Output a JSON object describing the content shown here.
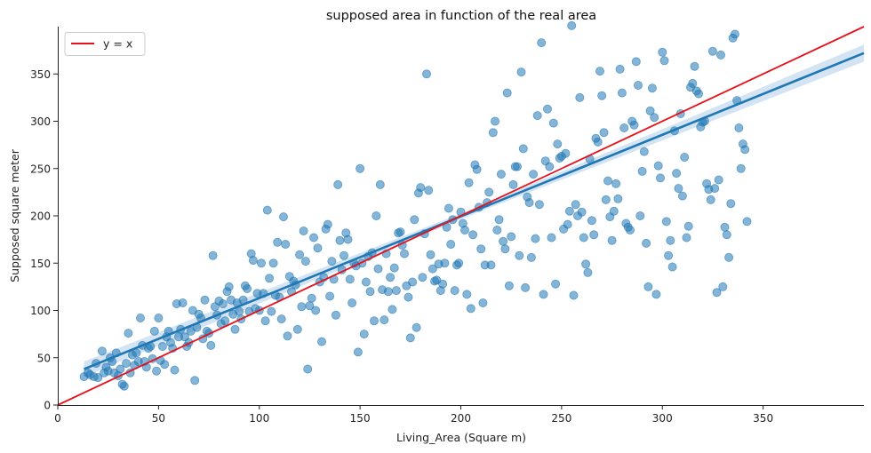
{
  "chart_data": {
    "type": "scatter",
    "title": "supposed area in function of the real area",
    "xlabel": "Living_Area (Square m)",
    "ylabel": "Supposed square meter",
    "xlim": [
      0,
      400
    ],
    "ylim": [
      0,
      400
    ],
    "xticks": [
      0,
      50,
      100,
      150,
      200,
      250,
      300,
      350
    ],
    "yticks": [
      0,
      50,
      100,
      150,
      200,
      250,
      300,
      350
    ],
    "grid": false,
    "legend": {
      "position": "top-left",
      "entries": [
        {
          "label": "y = x",
          "color": "#e8101a"
        }
      ]
    },
    "colors": {
      "points": "#1f77b4",
      "regression": "#1f77b4",
      "identity": "#e8101a",
      "band": "#c6dbef"
    },
    "series": [
      {
        "type": "scatter",
        "points": [
          [
            13,
            30
          ],
          [
            15,
            34
          ],
          [
            16,
            32
          ],
          [
            18,
            30
          ],
          [
            19,
            44
          ],
          [
            20,
            29
          ],
          [
            22,
            57
          ],
          [
            23,
            34
          ],
          [
            24,
            40
          ],
          [
            25,
            36
          ],
          [
            26,
            50
          ],
          [
            27,
            46
          ],
          [
            28,
            34
          ],
          [
            29,
            55
          ],
          [
            30,
            31
          ],
          [
            31,
            38
          ],
          [
            32,
            22
          ],
          [
            33,
            20
          ],
          [
            34,
            44
          ],
          [
            35,
            76
          ],
          [
            36,
            34
          ],
          [
            37,
            53
          ],
          [
            38,
            42
          ],
          [
            39,
            55
          ],
          [
            40,
            46
          ],
          [
            41,
            92
          ],
          [
            42,
            63
          ],
          [
            43,
            46
          ],
          [
            44,
            40
          ],
          [
            45,
            60
          ],
          [
            46,
            62
          ],
          [
            47,
            49
          ],
          [
            48,
            78
          ],
          [
            49,
            36
          ],
          [
            50,
            92
          ],
          [
            51,
            47
          ],
          [
            52,
            62
          ],
          [
            53,
            43
          ],
          [
            54,
            72
          ],
          [
            55,
            78
          ],
          [
            56,
            66
          ],
          [
            57,
            60
          ],
          [
            58,
            37
          ],
          [
            59,
            107
          ],
          [
            60,
            72
          ],
          [
            61,
            80
          ],
          [
            62,
            108
          ],
          [
            63,
            72
          ],
          [
            64,
            62
          ],
          [
            65,
            66
          ],
          [
            66,
            78
          ],
          [
            67,
            100
          ],
          [
            68,
            26
          ],
          [
            69,
            82
          ],
          [
            70,
            96
          ],
          [
            71,
            92
          ],
          [
            72,
            70
          ],
          [
            73,
            111
          ],
          [
            74,
            78
          ],
          [
            75,
            76
          ],
          [
            76,
            63
          ],
          [
            77,
            158
          ],
          [
            78,
            104
          ],
          [
            79,
            95
          ],
          [
            80,
            110
          ],
          [
            81,
            86
          ],
          [
            82,
            107
          ],
          [
            83,
            89
          ],
          [
            84,
            120
          ],
          [
            85,
            125
          ],
          [
            86,
            111
          ],
          [
            87,
            96
          ],
          [
            88,
            80
          ],
          [
            89,
            108
          ],
          [
            90,
            99
          ],
          [
            91,
            91
          ],
          [
            92,
            111
          ],
          [
            93,
            126
          ],
          [
            94,
            123
          ],
          [
            95,
            99
          ],
          [
            96,
            160
          ],
          [
            97,
            153
          ],
          [
            98,
            102
          ],
          [
            99,
            118
          ],
          [
            100,
            100
          ],
          [
            101,
            150
          ],
          [
            102,
            118
          ],
          [
            103,
            89
          ],
          [
            104,
            206
          ],
          [
            105,
            134
          ],
          [
            106,
            99
          ],
          [
            107,
            150
          ],
          [
            108,
            116
          ],
          [
            109,
            172
          ],
          [
            110,
            114
          ],
          [
            111,
            91
          ],
          [
            112,
            199
          ],
          [
            113,
            170
          ],
          [
            114,
            73
          ],
          [
            115,
            136
          ],
          [
            116,
            120
          ],
          [
            117,
            131
          ],
          [
            118,
            127
          ],
          [
            119,
            80
          ],
          [
            120,
            159
          ],
          [
            121,
            104
          ],
          [
            122,
            184
          ],
          [
            123,
            152
          ],
          [
            124,
            38
          ],
          [
            125,
            105
          ],
          [
            126,
            113
          ],
          [
            127,
            177
          ],
          [
            128,
            100
          ],
          [
            129,
            166
          ],
          [
            130,
            130
          ],
          [
            131,
            67
          ],
          [
            132,
            135
          ],
          [
            133,
            186
          ],
          [
            134,
            191
          ],
          [
            135,
            115
          ],
          [
            136,
            152
          ],
          [
            137,
            133
          ],
          [
            138,
            95
          ],
          [
            139,
            233
          ],
          [
            140,
            174
          ],
          [
            141,
            143
          ],
          [
            142,
            158
          ],
          [
            143,
            182
          ],
          [
            144,
            175
          ],
          [
            145,
            133
          ],
          [
            146,
            108
          ],
          [
            147,
            150
          ],
          [
            148,
            147
          ],
          [
            149,
            56
          ],
          [
            150,
            250
          ],
          [
            151,
            150
          ],
          [
            152,
            75
          ],
          [
            153,
            130
          ],
          [
            154,
            157
          ],
          [
            155,
            120
          ],
          [
            156,
            161
          ],
          [
            157,
            89
          ],
          [
            158,
            200
          ],
          [
            159,
            144
          ],
          [
            160,
            233
          ],
          [
            161,
            122
          ],
          [
            162,
            90
          ],
          [
            163,
            160
          ],
          [
            164,
            120
          ],
          [
            165,
            135
          ],
          [
            166,
            101
          ],
          [
            167,
            145
          ],
          [
            168,
            121
          ],
          [
            169,
            182
          ],
          [
            170,
            183
          ],
          [
            171,
            169
          ],
          [
            172,
            160
          ],
          [
            173,
            126
          ],
          [
            174,
            114
          ],
          [
            175,
            71
          ],
          [
            176,
            130
          ],
          [
            177,
            196
          ],
          [
            178,
            82
          ],
          [
            179,
            224
          ],
          [
            180,
            230
          ],
          [
            181,
            135
          ],
          [
            182,
            181
          ],
          [
            183,
            350
          ],
          [
            184,
            227
          ],
          [
            185,
            159
          ],
          [
            186,
            144
          ],
          [
            187,
            131
          ],
          [
            188,
            132
          ],
          [
            189,
            149
          ],
          [
            190,
            121
          ],
          [
            191,
            128
          ],
          [
            192,
            150
          ],
          [
            193,
            188
          ],
          [
            194,
            208
          ],
          [
            195,
            170
          ],
          [
            196,
            196
          ],
          [
            197,
            121
          ],
          [
            198,
            148
          ],
          [
            199,
            150
          ],
          [
            200,
            204
          ],
          [
            201,
            192
          ],
          [
            202,
            185
          ],
          [
            203,
            117
          ],
          [
            204,
            235
          ],
          [
            205,
            102
          ],
          [
            206,
            180
          ],
          [
            207,
            254
          ],
          [
            208,
            249
          ],
          [
            209,
            209
          ],
          [
            210,
            165
          ],
          [
            211,
            108
          ],
          [
            212,
            148
          ],
          [
            213,
            214
          ],
          [
            214,
            225
          ],
          [
            215,
            148
          ],
          [
            216,
            288
          ],
          [
            217,
            300
          ],
          [
            218,
            185
          ],
          [
            219,
            196
          ],
          [
            220,
            244
          ],
          [
            221,
            173
          ],
          [
            222,
            165
          ],
          [
            223,
            330
          ],
          [
            224,
            126
          ],
          [
            225,
            178
          ],
          [
            226,
            233
          ],
          [
            227,
            252
          ],
          [
            228,
            252
          ],
          [
            229,
            158
          ],
          [
            230,
            352
          ],
          [
            231,
            271
          ],
          [
            232,
            124
          ],
          [
            233,
            220
          ],
          [
            234,
            214
          ],
          [
            235,
            156
          ],
          [
            236,
            244
          ],
          [
            237,
            176
          ],
          [
            238,
            306
          ],
          [
            239,
            212
          ],
          [
            240,
            383
          ],
          [
            241,
            117
          ],
          [
            242,
            258
          ],
          [
            243,
            313
          ],
          [
            244,
            252
          ],
          [
            245,
            177
          ],
          [
            246,
            298
          ],
          [
            247,
            128
          ],
          [
            248,
            276
          ],
          [
            249,
            261
          ],
          [
            250,
            263
          ],
          [
            251,
            186
          ],
          [
            252,
            266
          ],
          [
            253,
            191
          ],
          [
            254,
            205
          ],
          [
            255,
            401
          ],
          [
            256,
            116
          ],
          [
            257,
            212
          ],
          [
            258,
            200
          ],
          [
            259,
            325
          ],
          [
            260,
            204
          ],
          [
            261,
            177
          ],
          [
            262,
            149
          ],
          [
            263,
            140
          ],
          [
            264,
            260
          ],
          [
            265,
            195
          ],
          [
            266,
            180
          ],
          [
            267,
            282
          ],
          [
            268,
            278
          ],
          [
            269,
            353
          ],
          [
            270,
            327
          ],
          [
            271,
            288
          ],
          [
            272,
            217
          ],
          [
            273,
            237
          ],
          [
            274,
            199
          ],
          [
            275,
            174
          ],
          [
            276,
            205
          ],
          [
            277,
            234
          ],
          [
            278,
            218
          ],
          [
            279,
            355
          ],
          [
            280,
            330
          ],
          [
            281,
            293
          ],
          [
            282,
            192
          ],
          [
            283,
            188
          ],
          [
            284,
            185
          ],
          [
            285,
            300
          ],
          [
            286,
            296
          ],
          [
            287,
            363
          ],
          [
            288,
            338
          ],
          [
            289,
            200
          ],
          [
            290,
            247
          ],
          [
            291,
            268
          ],
          [
            292,
            171
          ],
          [
            293,
            125
          ],
          [
            294,
            311
          ],
          [
            295,
            335
          ],
          [
            296,
            304
          ],
          [
            297,
            117
          ],
          [
            298,
            253
          ],
          [
            299,
            240
          ],
          [
            300,
            373
          ],
          [
            301,
            364
          ],
          [
            302,
            194
          ],
          [
            303,
            158
          ],
          [
            304,
            174
          ],
          [
            305,
            146
          ],
          [
            306,
            290
          ],
          [
            307,
            245
          ],
          [
            308,
            229
          ],
          [
            309,
            308
          ],
          [
            310,
            221
          ],
          [
            311,
            262
          ],
          [
            312,
            177
          ],
          [
            313,
            189
          ],
          [
            314,
            336
          ],
          [
            315,
            340
          ],
          [
            316,
            358
          ],
          [
            317,
            332
          ],
          [
            318,
            329
          ],
          [
            319,
            294
          ],
          [
            320,
            299
          ],
          [
            321,
            300
          ],
          [
            322,
            234
          ],
          [
            323,
            228
          ],
          [
            324,
            217
          ],
          [
            325,
            374
          ],
          [
            326,
            229
          ],
          [
            327,
            119
          ],
          [
            328,
            238
          ],
          [
            329,
            370
          ],
          [
            330,
            125
          ],
          [
            331,
            188
          ],
          [
            332,
            180
          ],
          [
            333,
            156
          ],
          [
            334,
            213
          ],
          [
            335,
            388
          ],
          [
            336,
            392
          ],
          [
            337,
            322
          ],
          [
            338,
            293
          ],
          [
            339,
            250
          ],
          [
            340,
            276
          ],
          [
            341,
            270
          ],
          [
            342,
            194
          ]
        ]
      }
    ],
    "regression": {
      "x": [
        13,
        400
      ],
      "y": [
        38,
        372
      ],
      "band_halfwidth": [
        8,
        9
      ]
    },
    "identity_line": {
      "x": [
        0,
        400
      ],
      "y": [
        0,
        400
      ]
    }
  }
}
